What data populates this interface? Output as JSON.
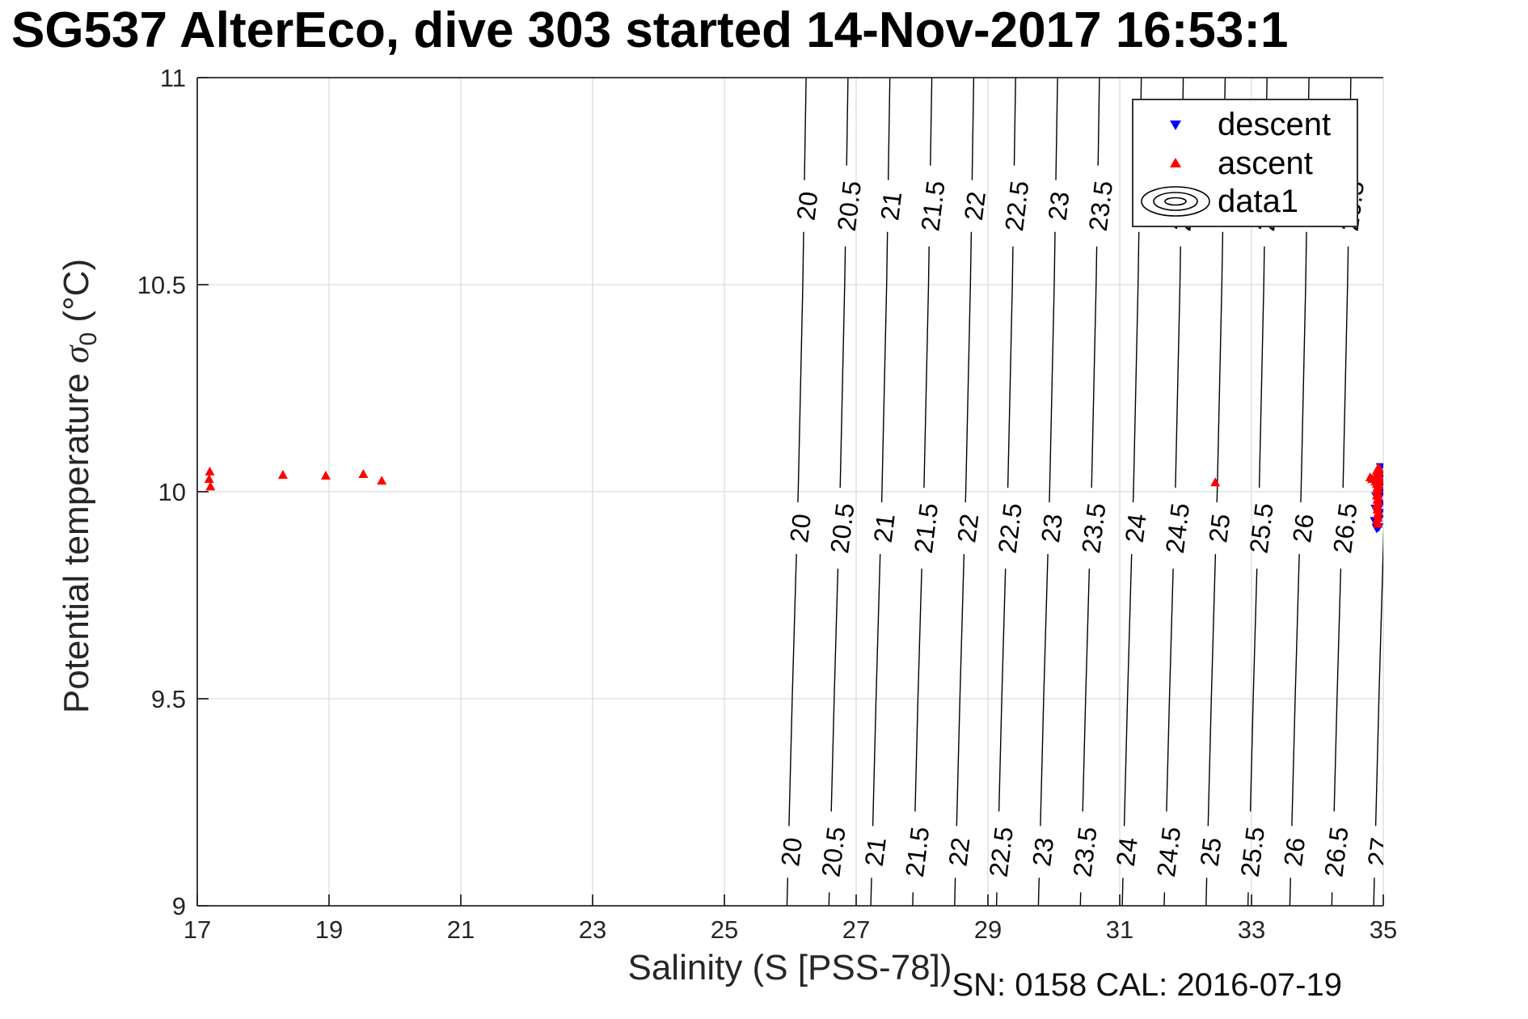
{
  "title": "SG537 AlterEco, dive 303 started 14-Nov-2017 16:53:1",
  "axes": {
    "xlabel": "Salinity (S [PSS-78])",
    "ylabel_prefix": "Potential temperature ",
    "ylabel_sigma": "σ",
    "ylabel_sub": "0",
    "ylabel_suffix": " (°C)"
  },
  "footer": {
    "sn_text": "SN: 0158  CAL: 2016-07-19"
  },
  "legend": {
    "items": [
      {
        "label": "descent",
        "marker": "triangle-down-icon",
        "color": "#0000ff"
      },
      {
        "label": "ascent",
        "marker": "triangle-up-icon",
        "color": "#ff0000"
      },
      {
        "label": "data1",
        "marker": "contour-rings-icon",
        "color": "#000000"
      }
    ]
  },
  "chart_data": {
    "type": "scatter",
    "title": "SG537 AlterEco, dive 303 started 14-Nov-2017 16:53:1",
    "xlabel": "Salinity (S [PSS-78])",
    "ylabel": "Potential temperature sigma_0 (degC)",
    "xlim": [
      17,
      35
    ],
    "ylim": [
      9,
      11
    ],
    "x_ticks": [
      "17",
      "19",
      "21",
      "23",
      "25",
      "27",
      "29",
      "31",
      "33",
      "35"
    ],
    "y_ticks": [
      "9",
      "9.5",
      "10",
      "10.5",
      "11"
    ],
    "grid": true,
    "colors": {
      "ascent": "#ff0000",
      "descent": "#0000ff",
      "contour": "#000000",
      "grid": "#dcdcdc",
      "axis": "#262626"
    },
    "series": [
      {
        "name": "descent",
        "marker": "triangle-down",
        "points": [
          [
            34.96,
            10.06
          ],
          [
            34.97,
            10.04
          ],
          [
            34.97,
            10.02
          ],
          [
            34.96,
            10.0
          ],
          [
            34.95,
            9.99
          ],
          [
            34.96,
            9.97
          ],
          [
            34.95,
            9.95
          ],
          [
            34.94,
            9.935
          ],
          [
            34.93,
            9.915
          ],
          [
            34.9,
            9.912
          ],
          [
            34.87,
            9.93
          ],
          [
            34.88,
            9.96
          ],
          [
            34.89,
            9.99
          ]
        ]
      },
      {
        "name": "ascent",
        "marker": "triangle-up",
        "points": [
          [
            17.19,
            10.048
          ],
          [
            17.18,
            10.03
          ],
          [
            17.2,
            10.012
          ],
          [
            18.3,
            10.04
          ],
          [
            18.95,
            10.038
          ],
          [
            19.52,
            10.042
          ],
          [
            19.8,
            10.026
          ],
          [
            32.45,
            10.022
          ],
          [
            34.93,
            10.058
          ],
          [
            34.9,
            10.05
          ],
          [
            34.95,
            10.048
          ],
          [
            34.92,
            10.042
          ],
          [
            34.89,
            10.038
          ],
          [
            34.94,
            10.035
          ],
          [
            34.91,
            10.03
          ],
          [
            34.95,
            10.028
          ],
          [
            34.88,
            10.024
          ],
          [
            34.92,
            10.022
          ],
          [
            34.9,
            10.018
          ],
          [
            34.94,
            10.015
          ],
          [
            34.91,
            10.01
          ],
          [
            34.93,
            10.006
          ],
          [
            34.9,
            10.002
          ],
          [
            34.8,
            10.034
          ],
          [
            34.83,
            10.03
          ],
          [
            34.92,
            9.996
          ],
          [
            34.9,
            9.99
          ],
          [
            34.93,
            9.986
          ],
          [
            34.91,
            9.98
          ],
          [
            34.93,
            9.974
          ],
          [
            34.9,
            9.968
          ],
          [
            34.92,
            9.962
          ],
          [
            34.91,
            9.956
          ],
          [
            34.93,
            9.95
          ],
          [
            34.91,
            9.944
          ],
          [
            34.92,
            9.936
          ],
          [
            34.9,
            9.93
          ],
          [
            34.92,
            9.922
          ]
        ]
      }
    ],
    "contours": {
      "name": "data1",
      "levels": [
        20,
        20.5,
        21,
        21.5,
        22,
        22.5,
        23,
        23.5,
        24,
        24.5,
        25,
        25.5,
        26,
        26.5,
        27
      ],
      "salinity_at_sigma20_t10": 26.12,
      "d_salinity_per_sigma": 1.272,
      "lean_t": [
        9,
        9.5,
        10,
        10.5,
        11
      ],
      "lean_ds": [
        -0.17,
        -0.09,
        0,
        0.07,
        0.12
      ],
      "label_rows": [
        {
          "t": 10.69,
          "levels": [
            20,
            20.5,
            21,
            21.5,
            22,
            22.5,
            23,
            23.5,
            24,
            24.5,
            25,
            25.5,
            26,
            26.5
          ]
        },
        {
          "t": 9.912,
          "levels": [
            20,
            20.5,
            21,
            21.5,
            22,
            22.5,
            23,
            23.5,
            24,
            24.5,
            25,
            25.5,
            26,
            26.5
          ]
        },
        {
          "t": 9.13,
          "levels": [
            20,
            20.5,
            21,
            21.5,
            22,
            22.5,
            23,
            23.5,
            24,
            24.5,
            25,
            25.5,
            26,
            26.5,
            27
          ]
        }
      ]
    }
  }
}
